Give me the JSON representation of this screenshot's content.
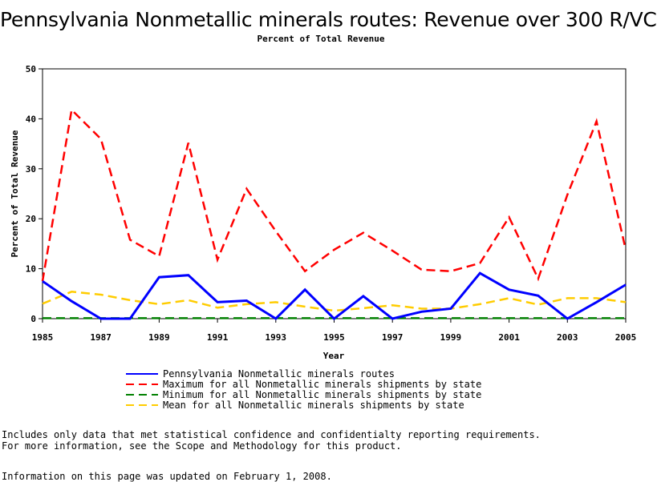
{
  "page": {
    "title": "Pennsylvania Nonmetallic minerals routes: Revenue over 300 R/VC",
    "note_line1": "Includes only data that met statistical confidence and confidentialty reporting requirements.",
    "note_line2": "For more information, see the Scope and Methodology for this product.",
    "updated": "Information on this page was updated on February 1, 2008."
  },
  "chart_data": {
    "type": "line",
    "title": "Pennsylvania Nonmetallic minerals routes: Revenue over 300 R/VC",
    "subtitle": "Percent of Total Revenue",
    "xlabel": "Year",
    "ylabel": "Percent of Total Revenue",
    "xlim": [
      1985,
      2005
    ],
    "ylim": [
      0,
      50
    ],
    "x_ticks": [
      1985,
      1987,
      1989,
      1991,
      1993,
      1995,
      1997,
      1999,
      2001,
      2003,
      2005
    ],
    "y_ticks": [
      0,
      10,
      20,
      30,
      40,
      50
    ],
    "grid": false,
    "legend_position": "bottom",
    "x": [
      1985,
      1986,
      1987,
      1988,
      1989,
      1990,
      1991,
      1992,
      1993,
      1994,
      1995,
      1996,
      1997,
      1998,
      1999,
      2000,
      2001,
      2002,
      2003,
      2004,
      2005
    ],
    "series": [
      {
        "name": "Pennsylvania Nonmetallic minerals routes",
        "color": "#0000ff",
        "style": "solid",
        "values": [
          7.5,
          3.5,
          0,
          0,
          8.3,
          8.7,
          3.3,
          3.6,
          0,
          5.8,
          0,
          4.5,
          0,
          1.4,
          2.0,
          9.1,
          5.8,
          4.6,
          0,
          3.3,
          6.8
        ]
      },
      {
        "name": "Maximum for all Nonmetallic minerals shipments by state",
        "color": "#ff0000",
        "style": "dashed",
        "values": [
          7.5,
          41.8,
          36.0,
          15.8,
          12.5,
          35.2,
          11.8,
          26.0,
          17.5,
          9.5,
          13.8,
          17.2,
          13.6,
          9.8,
          9.5,
          11.1,
          20.3,
          8.0,
          24.8,
          39.5,
          13.8
        ]
      },
      {
        "name": "Minimum for all Nonmetallic minerals shipments by state",
        "color": "#008000",
        "style": "dashed",
        "values": [
          0.1,
          0.1,
          0.1,
          0.1,
          0.1,
          0.1,
          0.1,
          0.1,
          0.1,
          0.1,
          0.1,
          0.1,
          0.1,
          0.1,
          0.1,
          0.1,
          0.1,
          0.1,
          0.1,
          0.1,
          0.1
        ]
      },
      {
        "name": "Mean for all Nonmetallic minerals shipments by state",
        "color": "#ffcc00",
        "style": "dashed",
        "values": [
          3.0,
          5.4,
          4.8,
          3.7,
          2.9,
          3.7,
          2.2,
          2.9,
          3.3,
          2.4,
          1.6,
          2.1,
          2.7,
          2.0,
          2.0,
          2.9,
          4.1,
          2.8,
          4.1,
          4.1,
          3.3
        ]
      }
    ]
  }
}
